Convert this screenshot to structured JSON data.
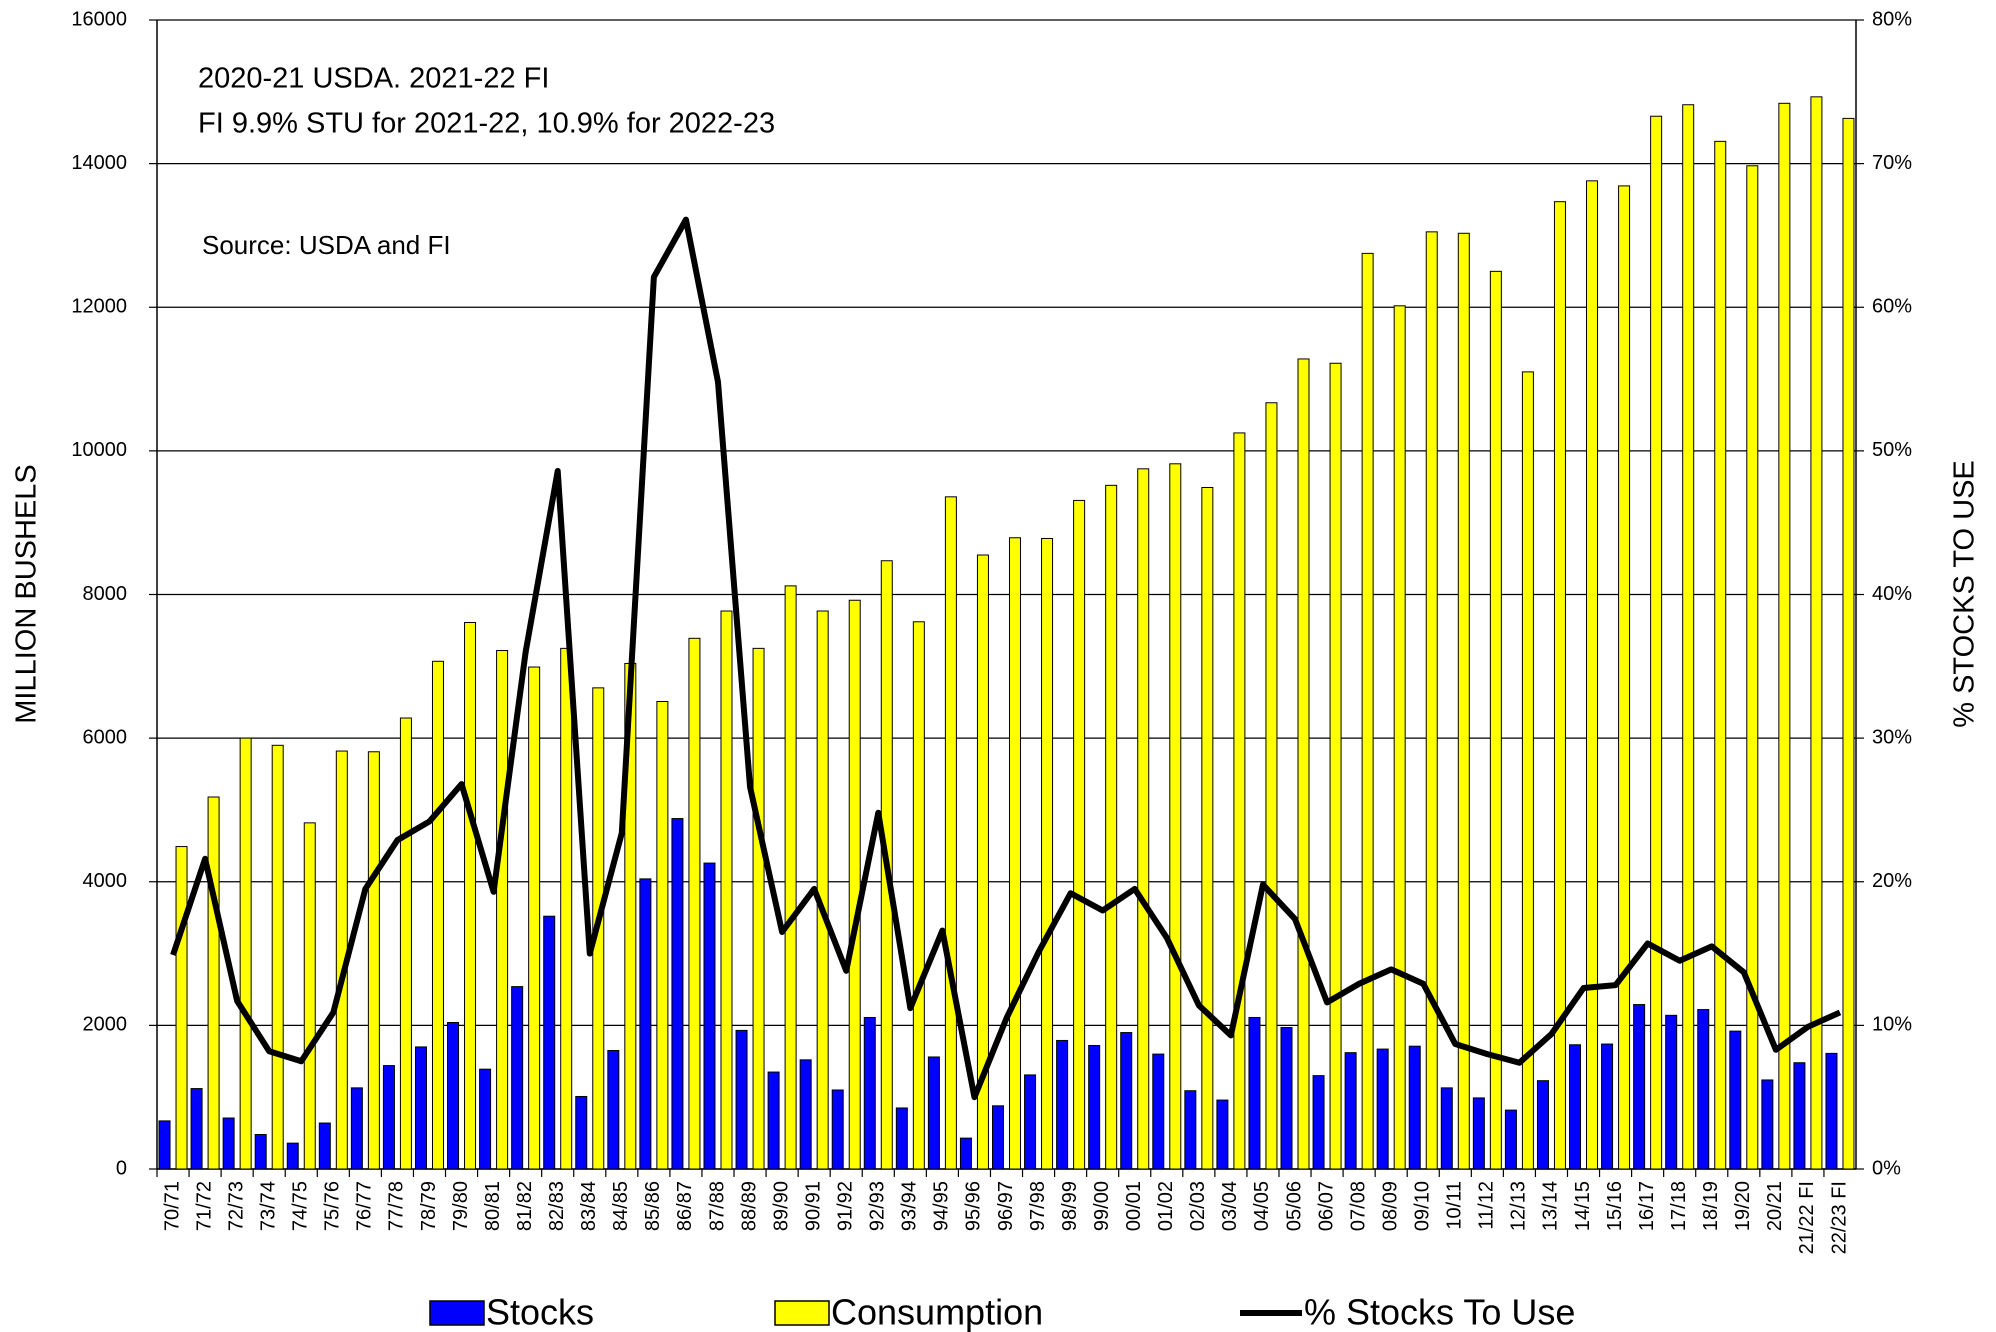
{
  "chart_data": {
    "type": "bar_line",
    "annotations": [
      "2020-21 USDA.  2021-22 FI",
      "FI 9.9% STU for 2021-22, 10.9% for 2022-23",
      "Source: USDA and FI"
    ],
    "y_label": "MILLION BUSHELS",
    "y2_label": "% STOCKS TO USE",
    "categories": [
      "70/71",
      "71/72",
      "72/73",
      "73/74",
      "74/75",
      "75/76",
      "76/77",
      "77/78",
      "78/79",
      "79/80",
      "80/81",
      "81/82",
      "82/83",
      "83/84",
      "84/85",
      "85/86",
      "86/87",
      "87/88",
      "88/89",
      "89/90",
      "90/91",
      "91/92",
      "92/93",
      "93/94",
      "94/95",
      "95/96",
      "96/97",
      "97/98",
      "98/99",
      "99/00",
      "00/01",
      "01/02",
      "02/03",
      "03/04",
      "04/05",
      "05/06",
      "06/07",
      "07/08",
      "08/09",
      "09/10",
      "10/11",
      "11/12",
      "12/13",
      "13/14",
      "14/15",
      "15/16",
      "16/17",
      "17/18",
      "18/19",
      "19/20",
      "20/21",
      "21/22 FI",
      "22/23 FI"
    ],
    "series": [
      {
        "name": "Stocks",
        "type": "bar",
        "color": "#0000ff",
        "values": [
          670,
          1120,
          710,
          480,
          360,
          640,
          1130,
          1440,
          1700,
          2040,
          1390,
          2540,
          3520,
          1010,
          1650,
          4040,
          4880,
          4260,
          1930,
          1350,
          1520,
          1100,
          2110,
          850,
          1560,
          430,
          880,
          1310,
          1790,
          1720,
          1900,
          1600,
          1090,
          960,
          2110,
          1970,
          1300,
          1620,
          1670,
          1710,
          1130,
          990,
          820,
          1230,
          1730,
          1740,
          2290,
          2140,
          2220,
          1920,
          1240,
          1480,
          1610
        ]
      },
      {
        "name": "Consumption",
        "type": "bar",
        "color": "#ffff00",
        "values": [
          4490,
          5180,
          6000,
          5900,
          4820,
          5820,
          5810,
          6280,
          7070,
          7610,
          7220,
          6990,
          7250,
          6700,
          7040,
          6510,
          7390,
          7770,
          7250,
          8120,
          7770,
          7920,
          8470,
          7620,
          9360,
          8550,
          8790,
          8780,
          9310,
          9520,
          9750,
          9820,
          9490,
          10250,
          10670,
          11280,
          11220,
          12750,
          12020,
          13050,
          13030,
          12500,
          11100,
          13470,
          13760,
          13690,
          14660,
          14820,
          14310,
          13970,
          14840,
          14930,
          14630
        ]
      },
      {
        "name": "% Stocks To Use",
        "type": "line",
        "axis": "y2",
        "color": "#000000",
        "values": [
          14.9,
          21.6,
          11.7,
          8.2,
          7.5,
          10.9,
          19.5,
          22.9,
          24.2,
          26.8,
          19.3,
          36.0,
          48.6,
          15.0,
          23.4,
          62.1,
          66.1,
          54.8,
          26.6,
          16.5,
          19.5,
          13.8,
          24.8,
          11.2,
          16.6,
          5.0,
          10.5,
          15.1,
          19.2,
          18.0,
          19.5,
          16.1,
          11.4,
          9.3,
          19.8,
          17.4,
          11.6,
          12.9,
          13.9,
          12.9,
          8.7,
          8.0,
          7.4,
          9.4,
          12.6,
          12.8,
          15.7,
          14.5,
          15.5,
          13.7,
          8.3,
          9.9,
          10.9
        ]
      }
    ],
    "ylim": [
      0,
      16000
    ],
    "yticks": [
      0,
      2000,
      4000,
      6000,
      8000,
      10000,
      12000,
      14000,
      16000
    ],
    "y2lim": [
      0,
      80
    ],
    "y2ticks": [
      {
        "value": 0,
        "label": "0%"
      },
      {
        "value": 10,
        "label": "10%"
      },
      {
        "value": 20,
        "label": "20%"
      },
      {
        "value": 30,
        "label": "30%"
      },
      {
        "value": 40,
        "label": "40%"
      },
      {
        "value": 50,
        "label": "50%"
      },
      {
        "value": 60,
        "label": "60%"
      },
      {
        "value": 70,
        "label": "70%"
      },
      {
        "value": 80,
        "label": "80%"
      }
    ],
    "grid": true,
    "legend": "bottom"
  }
}
